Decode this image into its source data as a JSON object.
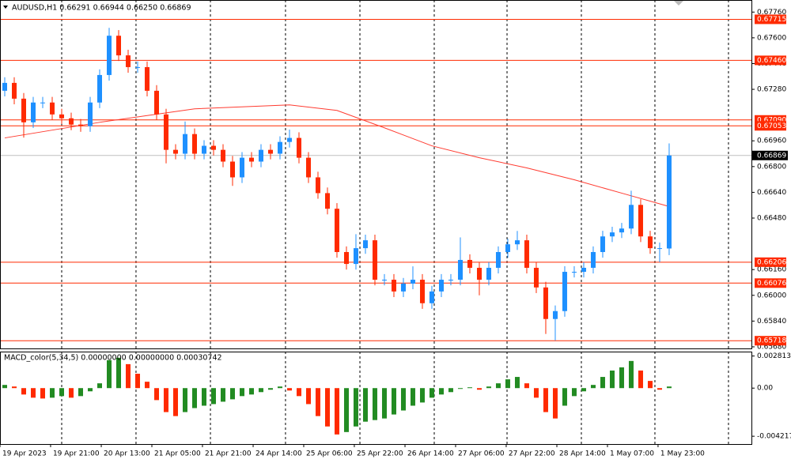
{
  "chart_data": {
    "type": "candlestick",
    "title": "AUDUSD,H1 0.66291 0.66944 0.66250 0.66869",
    "up_color": "#1e90ff",
    "down_color": "#ff2a00",
    "xlim": [
      -0.5,
      78.67
    ],
    "ylim": [
      0.6567,
      0.67835
    ],
    "open": [
      0.67271,
      0.6732,
      0.67222,
      0.67075,
      0.67198,
      0.67198,
      0.67124,
      0.671,
      0.67061,
      0.67051,
      0.67198,
      0.67369,
      0.67613,
      0.67491,
      0.67418,
      0.67418,
      0.67271,
      0.67124,
      0.66904,
      0.6688,
      0.67002,
      0.6688,
      0.66929,
      0.66904,
      0.66831,
      0.66733,
      0.66855,
      0.66831,
      0.66904,
      0.6688,
      0.66953,
      0.66978,
      0.66855,
      0.66733,
      0.66635,
      0.66538,
      0.66269,
      0.66195,
      0.66293,
      0.66342,
      0.66097,
      0.66097,
      0.66024,
      0.66073,
      0.66097,
      0.65951,
      0.66024,
      0.66097,
      0.66097,
      0.6622,
      0.66171,
      0.66097,
      0.66171,
      0.66269,
      0.66317,
      0.66342,
      0.66171,
      0.66049,
      0.65853,
      0.65902,
      0.66146,
      0.66146,
      0.66171,
      0.66269,
      0.66366,
      0.66391,
      0.66415,
      0.66562,
      0.66366,
      0.66293,
      0.66291
    ],
    "high": [
      0.67355,
      0.67355,
      0.67257,
      0.67233,
      0.67233,
      0.67233,
      0.67159,
      0.67135,
      0.67096,
      0.67233,
      0.67404,
      0.67662,
      0.67648,
      0.67526,
      0.67453,
      0.67453,
      0.67306,
      0.67159,
      0.66939,
      0.6708,
      0.67037,
      0.66964,
      0.66964,
      0.66939,
      0.66866,
      0.6689,
      0.6689,
      0.66939,
      0.66939,
      0.66988,
      0.6703,
      0.67013,
      0.6689,
      0.66768,
      0.6667,
      0.66573,
      0.66304,
      0.6638,
      0.66377,
      0.66377,
      0.66132,
      0.66132,
      0.66108,
      0.6618,
      0.66132,
      0.66059,
      0.66132,
      0.66132,
      0.6636,
      0.66255,
      0.66206,
      0.66206,
      0.66304,
      0.66352,
      0.664,
      0.66377,
      0.66206,
      0.66084,
      0.65937,
      0.66181,
      0.66181,
      0.66206,
      0.66304,
      0.66401,
      0.66426,
      0.6645,
      0.6665,
      0.66597,
      0.66401,
      0.66328,
      0.66944
    ],
    "low": [
      0.67236,
      0.67187,
      0.6698,
      0.6704,
      0.67163,
      0.67089,
      0.67065,
      0.67026,
      0.67016,
      0.67016,
      0.67163,
      0.67334,
      0.67456,
      0.67383,
      0.67383,
      0.67236,
      0.67089,
      0.6682,
      0.66845,
      0.66845,
      0.66845,
      0.66845,
      0.66869,
      0.66796,
      0.6668,
      0.66698,
      0.66796,
      0.66796,
      0.66845,
      0.66845,
      0.66918,
      0.6682,
      0.66698,
      0.666,
      0.66503,
      0.66234,
      0.6616,
      0.6616,
      0.66258,
      0.66062,
      0.66062,
      0.65989,
      0.65989,
      0.66038,
      0.65916,
      0.65916,
      0.65989,
      0.66062,
      0.66062,
      0.66136,
      0.66,
      0.66062,
      0.66136,
      0.66234,
      0.66282,
      0.66136,
      0.66014,
      0.6576,
      0.6572,
      0.65867,
      0.66111,
      0.66111,
      0.66136,
      0.66234,
      0.66331,
      0.66356,
      0.6638,
      0.66331,
      0.66258,
      0.66206,
      0.6625
    ],
    "close": [
      0.6732,
      0.67222,
      0.67075,
      0.67198,
      0.67198,
      0.67124,
      0.671,
      0.67061,
      0.67051,
      0.67198,
      0.67369,
      0.67613,
      0.67491,
      0.67418,
      0.67418,
      0.67271,
      0.67124,
      0.66904,
      0.6688,
      0.67002,
      0.6688,
      0.66929,
      0.66904,
      0.66831,
      0.66733,
      0.66855,
      0.66831,
      0.66904,
      0.6688,
      0.66953,
      0.66978,
      0.66855,
      0.66733,
      0.66635,
      0.66538,
      0.66269,
      0.66195,
      0.66293,
      0.66342,
      0.66097,
      0.66097,
      0.66024,
      0.66073,
      0.66097,
      0.65951,
      0.66024,
      0.66097,
      0.66097,
      0.6622,
      0.66171,
      0.66097,
      0.66171,
      0.66269,
      0.66317,
      0.66342,
      0.66171,
      0.66049,
      0.65853,
      0.65902,
      0.66146,
      0.66146,
      0.66171,
      0.66269,
      0.66366,
      0.66391,
      0.66415,
      0.66562,
      0.66366,
      0.66293,
      0.66293,
      0.66869
    ],
    "moving_average": {
      "color": "#ff3b30",
      "x": [
        0,
        10,
        20,
        30,
        35,
        40,
        45,
        50,
        55,
        60,
        65,
        70
      ],
      "values": [
        0.66978,
        0.67075,
        0.67159,
        0.67183,
        0.67149,
        0.67041,
        0.66929,
        0.66855,
        0.66792,
        0.66718,
        0.66635,
        0.66552
      ]
    },
    "levels": [
      {
        "value": 0.67715,
        "label": "0.67715"
      },
      {
        "value": 0.6746,
        "label": "0.67460"
      },
      {
        "value": 0.6709,
        "label": "0.67090"
      },
      {
        "value": 0.67053,
        "label": "0.67053"
      },
      {
        "value": 0.66206,
        "label": "0.66206"
      },
      {
        "value": 0.66076,
        "label": "0.66076"
      },
      {
        "value": 0.65718,
        "label": "0.65718"
      }
    ],
    "level_color": "#ff2a00",
    "current_price": {
      "value": 0.66869,
      "label": "0.66869"
    },
    "yticks": [
      {
        "value": 0.6776,
        "label": "0.67760"
      },
      {
        "value": 0.676,
        "label": "0.67600"
      },
      {
        "value": 0.6744,
        "label": "0.67440"
      },
      {
        "value": 0.6728,
        "label": "0.67280"
      },
      {
        "value": 0.6696,
        "label": "0.66960"
      },
      {
        "value": 0.668,
        "label": "0.66800"
      },
      {
        "value": 0.6664,
        "label": "0.66640"
      },
      {
        "value": 0.6648,
        "label": "0.66480"
      },
      {
        "value": 0.6616,
        "label": "0.66160"
      },
      {
        "value": 0.66,
        "label": "0.66000"
      },
      {
        "value": 0.6584,
        "label": "0.65840"
      },
      {
        "value": 0.6568,
        "label": "0.65680"
      }
    ],
    "xticks": [
      {
        "value": -0.5,
        "label": "19 Apr 2023"
      },
      {
        "value": 4.83,
        "label": "19 Apr 21:00"
      },
      {
        "value": 10.17,
        "label": "20 Apr 13:00"
      },
      {
        "value": 15.5,
        "label": "21 Apr 05:00"
      },
      {
        "value": 20.83,
        "label": "21 Apr 21:00"
      },
      {
        "value": 26.17,
        "label": "24 Apr 14:00"
      },
      {
        "value": 31.5,
        "label": "25 Apr 06:00"
      },
      {
        "value": 36.83,
        "label": "25 Apr 22:00"
      },
      {
        "value": 42.17,
        "label": "26 Apr 14:00"
      },
      {
        "value": 47.5,
        "label": "27 Apr 06:00"
      },
      {
        "value": 52.83,
        "label": "27 Apr 22:00"
      },
      {
        "value": 58.17,
        "label": "28 Apr 14:00"
      },
      {
        "value": 63.5,
        "label": "1 May 07:00"
      },
      {
        "value": 68.83,
        "label": "1 May 23:00"
      }
    ],
    "day_separators": [
      6,
      13.83,
      21.67,
      29.58,
      37.42,
      45.25,
      52.92,
      60.75,
      68.5,
      76.25
    ],
    "macd": {
      "title": "MACD_color(5,34,5) 0.00000000 0.00000000 0.00030742",
      "up_color": "#228b22",
      "down_color": "#ff2a00",
      "ylim": [
        -0.0049,
        0.0032
      ],
      "yticks": [
        0.0028134,
        {
          "value": 0,
          "label": "0.00"
        },
        -0.004217
      ],
      "values": [
        0.00028,
        0.00014,
        -0.00056,
        -0.00084,
        -0.00091,
        -0.00084,
        -0.0007,
        -0.00084,
        -0.0007,
        -0.00028,
        0.00042,
        0.00245,
        0.00266,
        0.0021,
        0.00126,
        0.00056,
        -0.00105,
        -0.0021,
        -0.00245,
        -0.0021,
        -0.00175,
        -0.00154,
        -0.0014,
        -0.00119,
        -0.00098,
        -0.0007,
        -0.00056,
        -0.00035,
        -0.00014,
        0.00014,
        -0.00021,
        -0.0007,
        -0.0014,
        -0.00245,
        -0.00336,
        -0.00406,
        -0.00385,
        -0.00336,
        -0.00294,
        -0.0028,
        -0.00266,
        -0.00231,
        -0.00196,
        -0.00154,
        -0.00126,
        -0.00084,
        -0.00056,
        -0.00035,
        -7e-05,
        7e-05,
        -0.00014,
        0.00014,
        0.00042,
        0.00077,
        0.00098,
        0.00042,
        -0.00084,
        -0.0021,
        -0.00266,
        -0.00154,
        -0.0007,
        -0.00028,
        0.00028,
        0.00098,
        0.00154,
        0.00182,
        0.00238,
        0.00154,
        0.00063,
        -0.00014,
        0.00014
      ]
    }
  }
}
